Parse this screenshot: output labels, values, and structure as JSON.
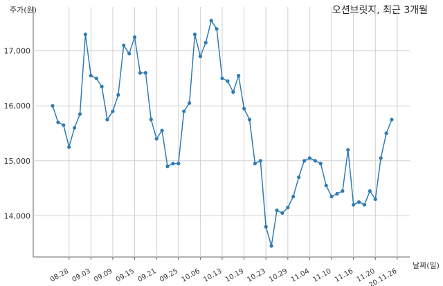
{
  "chart_data": {
    "type": "line",
    "title": "오션브릿지, 최근 3개월",
    "ylabel": "주가(원)",
    "xlabel": "날짜(일)",
    "ylim": [
      13250,
      17800
    ],
    "yticks": [
      14000,
      15000,
      16000,
      17000
    ],
    "ytick_labels": [
      "14,000",
      "15,000",
      "16,000",
      "17,000"
    ],
    "xtick_labels": [
      "08.28",
      "09.03",
      "09.09",
      "09.15",
      "09.21",
      "09.25",
      "10.06",
      "10.13",
      "10.19",
      "10.23",
      "10.29",
      "11.04",
      "11.10",
      "11.16",
      "11.20",
      "20.11.26"
    ],
    "xtick_index": [
      3,
      7,
      11,
      15,
      19,
      23,
      27,
      31,
      35,
      39,
      43,
      47,
      51,
      55,
      59,
      63
    ],
    "grid": true,
    "line_color": "#2e7bb4",
    "series": [
      {
        "values": [
          16000,
          15700,
          15650,
          15250,
          15600,
          15850,
          17300,
          16550,
          16500,
          16350,
          15750,
          15900,
          16200,
          17100,
          16950,
          17250,
          16600,
          16600,
          15750,
          15400,
          15550,
          14900,
          14950,
          14950,
          15900,
          16050,
          17300,
          16900,
          17150,
          17550,
          17400,
          16500,
          16450,
          16250,
          16550,
          15950,
          15750,
          14950,
          15000,
          13800,
          13450,
          14100,
          14050,
          14150,
          14350,
          14700,
          15000,
          15050,
          15000,
          14950,
          14550,
          14350,
          14400,
          14450,
          15200,
          14200,
          14250,
          14200,
          14450,
          14300,
          15050,
          15500,
          15750
        ]
      }
    ]
  }
}
